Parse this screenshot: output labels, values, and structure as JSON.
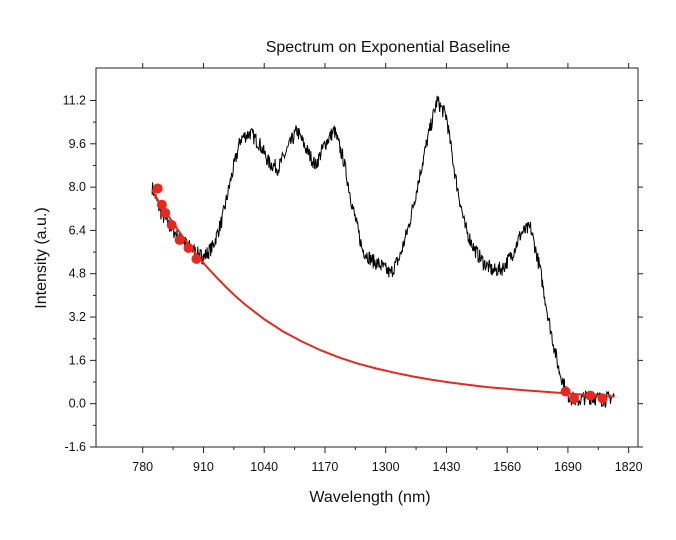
{
  "chart_data": {
    "type": "line",
    "title": "Spectrum on Exponential Baseline",
    "xlabel": "Wavelength (nm)",
    "ylabel": "Intensity (a.u.)",
    "xlim": [
      680,
      1840
    ],
    "ylim": [
      -1.6,
      12.4
    ],
    "xticks": [
      780,
      910,
      1040,
      1170,
      1300,
      1430,
      1560,
      1690,
      1820
    ],
    "yticks": [
      -1.6,
      0.0,
      1.6,
      3.2,
      4.8,
      6.4,
      8.0,
      9.6,
      11.2
    ],
    "xtick_labels": [
      "780",
      "910",
      "1040",
      "1170",
      "1300",
      "1430",
      "1560",
      "1690",
      "1820"
    ],
    "ytick_labels": [
      "-1.6",
      "0.0",
      "1.6",
      "3.2",
      "4.8",
      "6.4",
      "8.0",
      "9.6",
      "11.2"
    ],
    "grid": false,
    "series": [
      {
        "style": "noisy-line",
        "color": "#000000",
        "x": [
          800,
          820,
          840,
          860,
          880,
          900,
          910,
          930,
          950,
          970,
          990,
          1010,
          1030,
          1050,
          1070,
          1090,
          1110,
          1130,
          1150,
          1170,
          1190,
          1210,
          1230,
          1250,
          1270,
          1290,
          1310,
          1330,
          1350,
          1370,
          1390,
          1410,
          1430,
          1450,
          1470,
          1490,
          1510,
          1530,
          1550,
          1570,
          1590,
          1610,
          1630,
          1650,
          1670,
          1690,
          1710,
          1730,
          1750,
          1770,
          1790
        ],
        "y": [
          8.0,
          7.0,
          6.5,
          6.1,
          5.8,
          5.5,
          5.4,
          5.8,
          6.8,
          8.4,
          9.8,
          10.0,
          9.6,
          8.9,
          8.7,
          9.4,
          10.1,
          9.4,
          8.8,
          9.6,
          10.1,
          9.0,
          7.2,
          5.7,
          5.3,
          5.1,
          4.8,
          5.4,
          6.6,
          8.2,
          9.8,
          11.2,
          10.6,
          8.3,
          6.5,
          5.7,
          5.2,
          4.9,
          5.0,
          5.5,
          6.3,
          6.5,
          5.0,
          3.0,
          1.3,
          0.3,
          0.1,
          0.25,
          0.2,
          0.15,
          0.3
        ]
      },
      {
        "style": "smooth-line",
        "color": "#e8271f",
        "x": [
          800,
          820,
          840,
          860,
          880,
          900,
          920,
          940,
          960,
          980,
          1000,
          1040,
          1080,
          1120,
          1160,
          1200,
          1240,
          1280,
          1320,
          1360,
          1400,
          1440,
          1480,
          1520,
          1560,
          1600,
          1640,
          1680,
          1720,
          1760,
          1790
        ],
        "y": [
          7.9,
          7.3,
          6.8,
          6.3,
          5.85,
          5.4,
          5.0,
          4.63,
          4.28,
          3.95,
          3.65,
          3.12,
          2.67,
          2.3,
          1.98,
          1.71,
          1.48,
          1.3,
          1.14,
          1.0,
          0.88,
          0.78,
          0.69,
          0.61,
          0.55,
          0.49,
          0.44,
          0.39,
          0.34,
          0.29,
          0.26
        ]
      }
    ],
    "points": {
      "color": "#e8271f",
      "x": [
        812,
        821,
        828,
        842,
        859,
        878,
        895,
        1685,
        1703,
        1738,
        1764
      ],
      "y": [
        7.95,
        7.35,
        7.05,
        6.6,
        6.05,
        5.75,
        5.35,
        0.45,
        0.2,
        0.3,
        0.2
      ]
    }
  }
}
